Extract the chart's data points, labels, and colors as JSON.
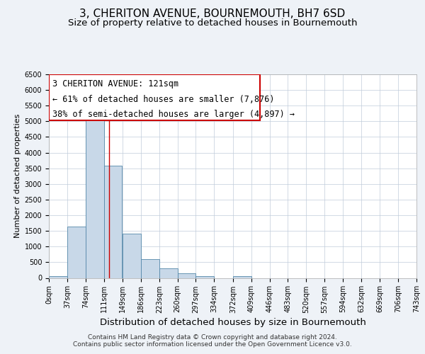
{
  "title": "3, CHERITON AVENUE, BOURNEMOUTH, BH7 6SD",
  "subtitle": "Size of property relative to detached houses in Bournemouth",
  "xlabel": "Distribution of detached houses by size in Bournemouth",
  "ylabel": "Number of detached properties",
  "bar_left_edges": [
    0,
    37,
    74,
    111,
    149,
    186,
    223,
    260,
    297,
    334,
    372,
    409,
    446,
    483,
    520,
    557,
    594,
    632,
    669,
    706
  ],
  "bar_heights": [
    60,
    1650,
    5080,
    3580,
    1420,
    610,
    300,
    150,
    60,
    0,
    60,
    0,
    0,
    0,
    0,
    0,
    0,
    0,
    0,
    0
  ],
  "bin_width": 37,
  "bar_color": "#c8d8e8",
  "bar_edge_color": "#5588aa",
  "x_tick_labels": [
    "0sqm",
    "37sqm",
    "74sqm",
    "111sqm",
    "149sqm",
    "186sqm",
    "223sqm",
    "260sqm",
    "297sqm",
    "334sqm",
    "372sqm",
    "409sqm",
    "446sqm",
    "483sqm",
    "520sqm",
    "557sqm",
    "594sqm",
    "632sqm",
    "669sqm",
    "706sqm",
    "743sqm"
  ],
  "ylim": [
    0,
    6500
  ],
  "xlim": [
    0,
    743
  ],
  "yticks": [
    0,
    500,
    1000,
    1500,
    2000,
    2500,
    3000,
    3500,
    4000,
    4500,
    5000,
    5500,
    6000,
    6500
  ],
  "property_line_x": 121,
  "property_line_color": "#cc0000",
  "annotation_line1": "3 CHERITON AVENUE: 121sqm",
  "annotation_line2": "← 61% of detached houses are smaller (7,876)",
  "annotation_line3": "38% of semi-detached houses are larger (4,897) →",
  "bg_color": "#eef2f7",
  "plot_bg_color": "#ffffff",
  "footer_line1": "Contains HM Land Registry data © Crown copyright and database right 2024.",
  "footer_line2": "Contains public sector information licensed under the Open Government Licence v3.0.",
  "title_fontsize": 11,
  "subtitle_fontsize": 9.5,
  "xlabel_fontsize": 9.5,
  "ylabel_fontsize": 8,
  "tick_fontsize": 7,
  "annotation_fontsize": 8.5,
  "footer_fontsize": 6.5
}
